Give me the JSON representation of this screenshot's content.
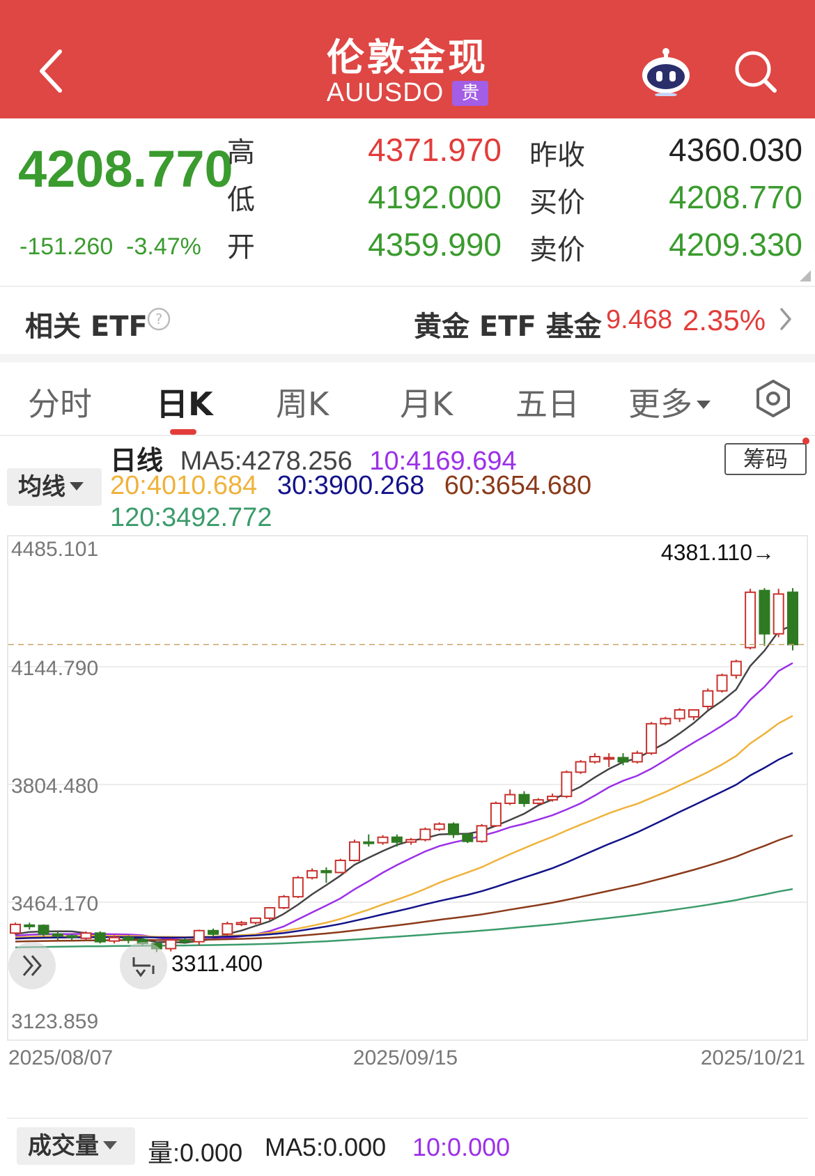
{
  "header": {
    "title": "伦敦金现",
    "subtitle": "AUUSDO",
    "badge": "贵",
    "icons": [
      "back-icon",
      "robot-icon",
      "search-icon"
    ],
    "bg_color": "#de4744"
  },
  "quote": {
    "price": "4208.770",
    "change": "-151.260",
    "change_pct": "-3.47%",
    "high_label": "高",
    "high": "4371.970",
    "low_label": "低",
    "low": "4192.000",
    "open_label": "开",
    "open": "4359.990",
    "prev_close_label": "昨收",
    "prev_close": "4360.030",
    "bid_label": "买价",
    "bid": "4208.770",
    "ask_label": "卖价",
    "ask": "4209.330"
  },
  "etf": {
    "label": "相关 ETF",
    "name": "黄金 ETF 基金",
    "price": "9.468",
    "pct": "2.35%"
  },
  "tabs": [
    {
      "label": "分时",
      "active": false
    },
    {
      "label": "日K",
      "active": true
    },
    {
      "label": "周K",
      "active": false
    },
    {
      "label": "月K",
      "active": false
    },
    {
      "label": "五日",
      "active": false
    },
    {
      "label": "更多",
      "active": false
    }
  ],
  "ma": {
    "selector": "均线",
    "period_label": "日线",
    "ma5": "MA5:4278.256",
    "ma10": "10:4169.694",
    "ma20": "20:4010.684",
    "ma30": "30:3900.268",
    "ma60": "60:3654.680",
    "ma120": "120:3492.772",
    "chip_button": "筹码",
    "colors": {
      "ma5": "#444444",
      "ma10": "#9b30e8",
      "ma20": "#efb23a",
      "ma30": "#13138a",
      "ma60": "#8b3a1a",
      "ma120": "#3a9b6a"
    }
  },
  "chart_data": {
    "type": "candlestick",
    "y_ticks": [
      "4485.101",
      "4144.790",
      "3804.480",
      "3464.170",
      "3123.859"
    ],
    "ylim": [
      3123.859,
      4485.101
    ],
    "x_ticks": [
      "2025/08/07",
      "2025/09/15",
      "2025/10/21"
    ],
    "max_label": "4381.110→",
    "min_label": "3311.400",
    "current_price": 4208.77,
    "up_color": "#c8322e",
    "down_color": "#2e7a23",
    "candles": [
      {
        "o": 3375,
        "c": 3400,
        "h": 3405,
        "l": 3370
      },
      {
        "o": 3398,
        "c": 3396,
        "h": 3405,
        "l": 3385
      },
      {
        "o": 3397,
        "c": 3372,
        "h": 3400,
        "l": 3365
      },
      {
        "o": 3372,
        "c": 3367,
        "h": 3380,
        "l": 3355
      },
      {
        "o": 3367,
        "c": 3364,
        "h": 3372,
        "l": 3355
      },
      {
        "o": 3360,
        "c": 3375,
        "h": 3380,
        "l": 3355
      },
      {
        "o": 3375,
        "c": 3350,
        "h": 3380,
        "l": 3345
      },
      {
        "o": 3352,
        "c": 3362,
        "h": 3368,
        "l": 3345
      },
      {
        "o": 3362,
        "c": 3355,
        "h": 3368,
        "l": 3345
      },
      {
        "o": 3356,
        "c": 3345,
        "h": 3360,
        "l": 3338
      },
      {
        "o": 3344,
        "c": 3330,
        "h": 3350,
        "l": 3320
      },
      {
        "o": 3330,
        "c": 3355,
        "h": 3360,
        "l": 3322
      },
      {
        "o": 3354,
        "c": 3350,
        "h": 3360,
        "l": 3344
      },
      {
        "o": 3350,
        "c": 3382,
        "h": 3385,
        "l": 3340
      },
      {
        "o": 3382,
        "c": 3372,
        "h": 3388,
        "l": 3365
      },
      {
        "o": 3372,
        "c": 3402,
        "h": 3408,
        "l": 3368
      },
      {
        "o": 3400,
        "c": 3405,
        "h": 3410,
        "l": 3395
      },
      {
        "o": 3405,
        "c": 3418,
        "h": 3420,
        "l": 3400
      },
      {
        "o": 3418,
        "c": 3448,
        "h": 3450,
        "l": 3412
      },
      {
        "o": 3448,
        "c": 3480,
        "h": 3485,
        "l": 3444
      },
      {
        "o": 3480,
        "c": 3535,
        "h": 3540,
        "l": 3476
      },
      {
        "o": 3535,
        "c": 3555,
        "h": 3562,
        "l": 3530
      },
      {
        "o": 3555,
        "c": 3550,
        "h": 3565,
        "l": 3520
      },
      {
        "o": 3550,
        "c": 3585,
        "h": 3590,
        "l": 3548
      },
      {
        "o": 3585,
        "c": 3638,
        "h": 3645,
        "l": 3582
      },
      {
        "o": 3638,
        "c": 3636,
        "h": 3660,
        "l": 3625
      },
      {
        "o": 3636,
        "c": 3652,
        "h": 3658,
        "l": 3630
      },
      {
        "o": 3652,
        "c": 3638,
        "h": 3660,
        "l": 3625
      },
      {
        "o": 3638,
        "c": 3645,
        "h": 3650,
        "l": 3630
      },
      {
        "o": 3645,
        "c": 3675,
        "h": 3680,
        "l": 3640
      },
      {
        "o": 3675,
        "c": 3690,
        "h": 3695,
        "l": 3670
      },
      {
        "o": 3690,
        "c": 3660,
        "h": 3695,
        "l": 3650
      },
      {
        "o": 3660,
        "c": 3640,
        "h": 3665,
        "l": 3635
      },
      {
        "o": 3640,
        "c": 3685,
        "h": 3690,
        "l": 3636
      },
      {
        "o": 3685,
        "c": 3750,
        "h": 3755,
        "l": 3682
      },
      {
        "o": 3750,
        "c": 3775,
        "h": 3790,
        "l": 3745
      },
      {
        "o": 3775,
        "c": 3750,
        "h": 3785,
        "l": 3740
      },
      {
        "o": 3750,
        "c": 3760,
        "h": 3765,
        "l": 3745
      },
      {
        "o": 3760,
        "c": 3770,
        "h": 3778,
        "l": 3755
      },
      {
        "o": 3770,
        "c": 3840,
        "h": 3845,
        "l": 3765
      },
      {
        "o": 3840,
        "c": 3870,
        "h": 3875,
        "l": 3835
      },
      {
        "o": 3870,
        "c": 3885,
        "h": 3895,
        "l": 3865
      },
      {
        "o": 3880,
        "c": 3882,
        "h": 3895,
        "l": 3855
      },
      {
        "o": 3882,
        "c": 3870,
        "h": 3895,
        "l": 3860
      },
      {
        "o": 3870,
        "c": 3895,
        "h": 3902,
        "l": 3865
      },
      {
        "o": 3895,
        "c": 3980,
        "h": 3985,
        "l": 3890
      },
      {
        "o": 3980,
        "c": 3995,
        "h": 4000,
        "l": 3975
      },
      {
        "o": 3995,
        "c": 4020,
        "h": 4025,
        "l": 3985
      },
      {
        "o": 4000,
        "c": 4020,
        "h": 4022,
        "l": 3990
      },
      {
        "o": 4030,
        "c": 4075,
        "h": 4082,
        "l": 4020
      },
      {
        "o": 4075,
        "c": 4120,
        "h": 4125,
        "l": 4070
      },
      {
        "o": 4120,
        "c": 4160,
        "h": 4165,
        "l": 4110
      },
      {
        "o": 4200,
        "c": 4360,
        "h": 4370,
        "l": 4195
      },
      {
        "o": 4365,
        "c": 4240,
        "h": 4372,
        "l": 4205
      },
      {
        "o": 4240,
        "c": 4355,
        "h": 4370,
        "l": 4230
      },
      {
        "o": 4359.99,
        "c": 4208.77,
        "h": 4371.97,
        "l": 4192.0
      }
    ]
  },
  "volume": {
    "selector": "成交量",
    "vol": "量:0.000",
    "ma5": "MA5:0.000",
    "ma10": "10:0.000"
  }
}
